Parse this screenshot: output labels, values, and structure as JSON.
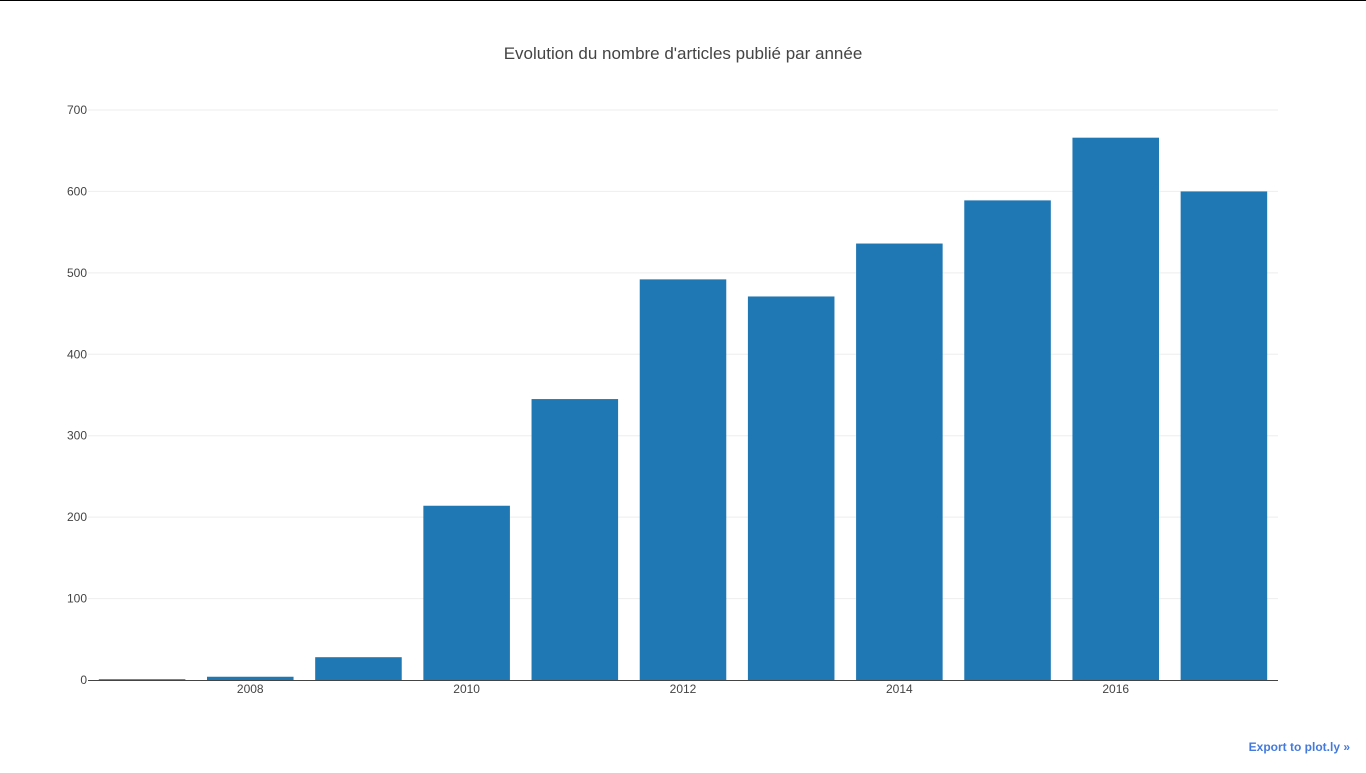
{
  "chart_data": {
    "type": "bar",
    "title": "Evolution du nombre d'articles publié par année",
    "xlabel": "",
    "ylabel": "",
    "categories": [
      2007,
      2008,
      2009,
      2010,
      2011,
      2012,
      2013,
      2014,
      2015,
      2016,
      2017
    ],
    "values": [
      1,
      4,
      28,
      214,
      345,
      492,
      471,
      536,
      589,
      666,
      600
    ],
    "xticks": [
      "2008",
      "2010",
      "2012",
      "2014",
      "2016"
    ],
    "yticks": [
      "0",
      "100",
      "200",
      "300",
      "400",
      "500",
      "600",
      "700"
    ],
    "ylim": [
      0,
      700
    ],
    "xlim": [
      2006.5,
      2017.5
    ],
    "grid": true,
    "legend": "none",
    "bar_color": "#1f77b4"
  },
  "export_link": "Export to plot.ly »"
}
